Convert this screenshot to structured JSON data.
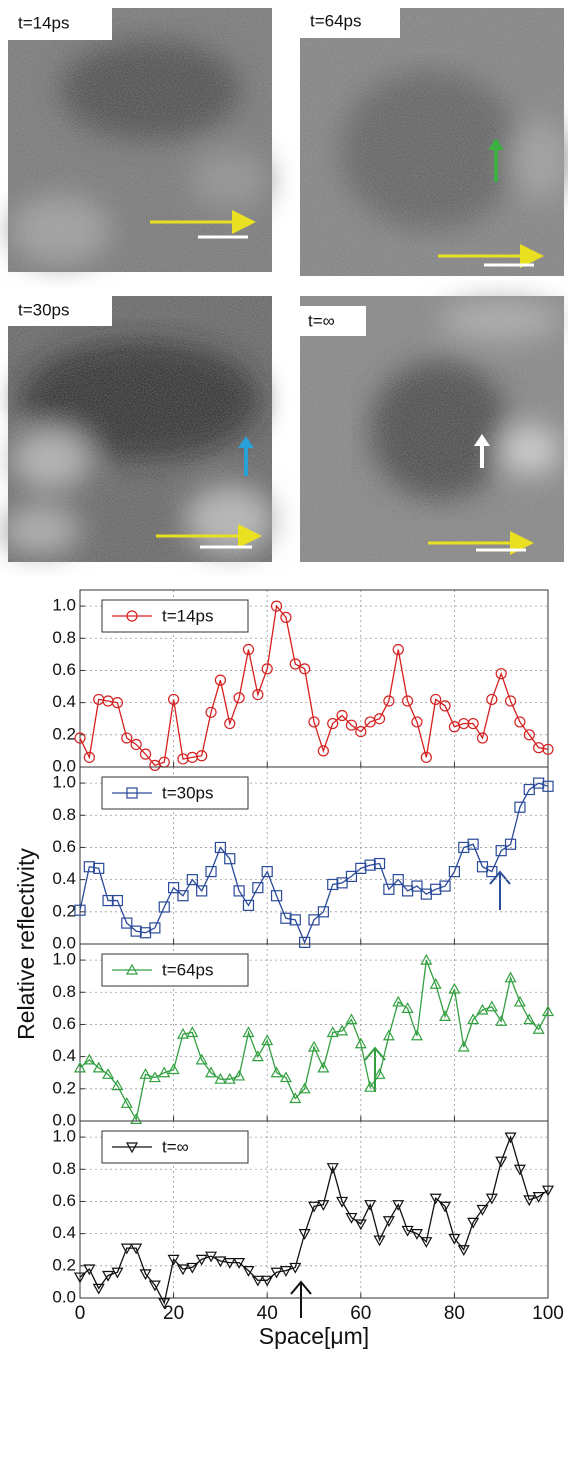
{
  "images": [
    {
      "label": "t=14ps"
    },
    {
      "label": "t=64ps"
    },
    {
      "label": "t=30ps"
    },
    {
      "label": "t=∞"
    }
  ],
  "chart_data": [
    {
      "type": "line",
      "xlim": [
        0,
        100
      ],
      "ylim": [
        0,
        1.1
      ],
      "xticks": [
        0,
        20,
        40,
        60,
        80,
        100
      ],
      "yticks": [
        {
          "value": 0,
          "label": "0.0"
        },
        {
          "value": 0.2,
          "label": "0.2"
        },
        {
          "value": 0.4,
          "label": "0.4"
        },
        {
          "value": 0.6,
          "label": "0.6"
        },
        {
          "value": 0.8,
          "label": "0.8"
        },
        {
          "value": 1.0,
          "label": "1.0"
        }
      ],
      "grid": true,
      "x": [
        0,
        2,
        4,
        6,
        8,
        10,
        12,
        14,
        16,
        18,
        20,
        22,
        24,
        26,
        28,
        30,
        32,
        34,
        36,
        38,
        40,
        42,
        44,
        46,
        48,
        50,
        52,
        54,
        56,
        58,
        60,
        62,
        64,
        66,
        68,
        70,
        72,
        74,
        76,
        78,
        80,
        82,
        84,
        86,
        88,
        90,
        92,
        94,
        96,
        98,
        100
      ],
      "series": [
        {
          "name": "t=14ps",
          "color": "#d62020",
          "marker": "circle",
          "values": [
            0.18,
            0.06,
            0.42,
            0.41,
            0.4,
            0.18,
            0.14,
            0.08,
            0.01,
            0.03,
            0.42,
            0.05,
            0.06,
            0.07,
            0.34,
            0.54,
            0.27,
            0.43,
            0.73,
            0.45,
            0.61,
            1.0,
            0.93,
            0.64,
            0.61,
            0.28,
            0.1,
            0.27,
            0.32,
            0.26,
            0.22,
            0.28,
            0.3,
            0.41,
            0.73,
            0.41,
            0.28,
            0.06,
            0.42,
            0.38,
            0.25,
            0.27,
            0.27,
            0.18,
            0.42,
            0.58,
            0.41,
            0.28,
            0.2,
            0.12,
            0.11
          ]
        }
      ]
    },
    {
      "type": "line",
      "xlim": [
        0,
        100
      ],
      "ylim": [
        0,
        1.1
      ],
      "xticks": [
        0,
        20,
        40,
        60,
        80,
        100
      ],
      "yticks": [
        {
          "value": 0,
          "label": "0.0"
        },
        {
          "value": 0.2,
          "label": "0.2"
        },
        {
          "value": 0.4,
          "label": "0.4"
        },
        {
          "value": 0.6,
          "label": "0.6"
        },
        {
          "value": 0.8,
          "label": "0.8"
        },
        {
          "value": 1.0,
          "label": "1.0"
        }
      ],
      "grid": true,
      "ylabel": "Relative reflectivity",
      "x": [
        0,
        2,
        4,
        6,
        8,
        10,
        12,
        14,
        16,
        18,
        20,
        22,
        24,
        26,
        28,
        30,
        32,
        34,
        36,
        38,
        40,
        42,
        44,
        46,
        48,
        50,
        52,
        54,
        56,
        58,
        60,
        62,
        64,
        66,
        68,
        70,
        72,
        74,
        76,
        78,
        80,
        82,
        84,
        86,
        88,
        90,
        92,
        94,
        96,
        98,
        100
      ],
      "series": [
        {
          "name": "t=30ps",
          "color": "#2a4a9a",
          "marker": "square",
          "values": [
            0.21,
            0.48,
            0.47,
            0.27,
            0.27,
            0.13,
            0.08,
            0.07,
            0.1,
            0.23,
            0.35,
            0.3,
            0.4,
            0.33,
            0.45,
            0.6,
            0.53,
            0.33,
            0.24,
            0.35,
            0.45,
            0.3,
            0.16,
            0.15,
            0.01,
            0.15,
            0.2,
            0.37,
            0.38,
            0.42,
            0.47,
            0.49,
            0.5,
            0.34,
            0.4,
            0.33,
            0.36,
            0.31,
            0.34,
            0.36,
            0.45,
            0.6,
            0.62,
            0.48,
            0.45,
            0.58,
            0.62,
            0.85,
            0.96,
            1.0,
            0.98
          ]
        }
      ]
    },
    {
      "type": "line",
      "xlim": [
        0,
        100
      ],
      "ylim": [
        0,
        1.1
      ],
      "xticks": [
        0,
        20,
        40,
        60,
        80,
        100
      ],
      "yticks": [
        {
          "value": 0,
          "label": "0.0"
        },
        {
          "value": 0.2,
          "label": "0.2"
        },
        {
          "value": 0.4,
          "label": "0.4"
        },
        {
          "value": 0.6,
          "label": "0.6"
        },
        {
          "value": 0.8,
          "label": "0.8"
        },
        {
          "value": 1.0,
          "label": "1.0"
        }
      ],
      "grid": true,
      "x": [
        0,
        2,
        4,
        6,
        8,
        10,
        12,
        14,
        16,
        18,
        20,
        22,
        24,
        26,
        28,
        30,
        32,
        34,
        36,
        38,
        40,
        42,
        44,
        46,
        48,
        50,
        52,
        54,
        56,
        58,
        60,
        62,
        64,
        66,
        68,
        70,
        72,
        74,
        76,
        78,
        80,
        82,
        84,
        86,
        88,
        90,
        92,
        94,
        96,
        98,
        100
      ],
      "series": [
        {
          "name": "t=64ps",
          "color": "#33a040",
          "marker": "triangle-up",
          "values": [
            0.33,
            0.38,
            0.33,
            0.29,
            0.22,
            0.11,
            0.01,
            0.29,
            0.27,
            0.3,
            0.32,
            0.54,
            0.55,
            0.38,
            0.3,
            0.26,
            0.26,
            0.28,
            0.55,
            0.4,
            0.5,
            0.3,
            0.27,
            0.14,
            0.2,
            0.46,
            0.33,
            0.55,
            0.56,
            0.63,
            0.48,
            0.21,
            0.29,
            0.53,
            0.74,
            0.7,
            0.53,
            1.0,
            0.85,
            0.65,
            0.82,
            0.46,
            0.63,
            0.69,
            0.71,
            0.62,
            0.89,
            0.74,
            0.63,
            0.57,
            0.68
          ]
        }
      ]
    },
    {
      "type": "line",
      "xlim": [
        0,
        100
      ],
      "ylim": [
        0,
        1.1
      ],
      "xticks": [
        0,
        20,
        40,
        60,
        80,
        100
      ],
      "yticks": [
        {
          "value": 0,
          "label": "0.0"
        },
        {
          "value": 0.2,
          "label": "0.2"
        },
        {
          "value": 0.4,
          "label": "0.4"
        },
        {
          "value": 0.6,
          "label": "0.6"
        },
        {
          "value": 0.8,
          "label": "0.8"
        },
        {
          "value": 1.0,
          "label": "1.0"
        }
      ],
      "grid": true,
      "xlabel": "Space[μm]",
      "x": [
        0,
        2,
        4,
        6,
        8,
        10,
        12,
        14,
        16,
        18,
        20,
        22,
        24,
        26,
        28,
        30,
        32,
        34,
        36,
        38,
        40,
        42,
        44,
        46,
        48,
        50,
        52,
        54,
        56,
        58,
        60,
        62,
        64,
        66,
        68,
        70,
        72,
        74,
        76,
        78,
        80,
        82,
        84,
        86,
        88,
        90,
        92,
        94,
        96,
        98,
        100
      ],
      "series": [
        {
          "name": "t=∞",
          "color": "#111111",
          "marker": "triangle-down",
          "values": [
            0.13,
            0.18,
            0.06,
            0.14,
            0.16,
            0.31,
            0.31,
            0.15,
            0.08,
            -0.03,
            0.24,
            0.18,
            0.19,
            0.24,
            0.26,
            0.23,
            0.22,
            0.22,
            0.17,
            0.11,
            0.11,
            0.16,
            0.17,
            0.19,
            0.4,
            0.57,
            0.58,
            0.81,
            0.6,
            0.5,
            0.46,
            0.58,
            0.36,
            0.48,
            0.58,
            0.42,
            0.4,
            0.35,
            0.62,
            0.57,
            0.37,
            0.3,
            0.47,
            0.55,
            0.62,
            0.85,
            1.0,
            0.8,
            0.61,
            0.63,
            0.67
          ]
        }
      ]
    }
  ]
}
